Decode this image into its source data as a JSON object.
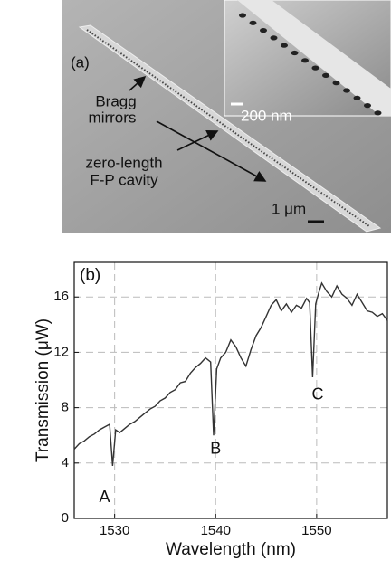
{
  "panel_a": {
    "panel_label": "(a)",
    "inset_scale": "200 nm",
    "scale": "1 μm",
    "label_mirrors": [
      "Bragg",
      "mirrors"
    ],
    "label_cavity": [
      "zero-length",
      "F-P cavity"
    ]
  },
  "chart_data": {
    "type": "line",
    "panel_label": "(b)",
    "x_label": "Wavelength (nm)",
    "y_label": "Transmission (μW)",
    "color": "#333333",
    "x": [
      1526,
      1526.5,
      1527,
      1527.5,
      1528,
      1528.5,
      1529,
      1529.5,
      1529.8,
      1530.1,
      1530.5,
      1531,
      1531.5,
      1532,
      1532.5,
      1533,
      1533.5,
      1534,
      1534.5,
      1535,
      1535.5,
      1536,
      1536.5,
      1537,
      1537.5,
      1538,
      1538.5,
      1539,
      1539.5,
      1539.8,
      1540.1,
      1540.5,
      1541,
      1541.5,
      1542,
      1542.5,
      1543,
      1543.5,
      1544,
      1544.5,
      1545,
      1545.5,
      1546,
      1546.5,
      1547,
      1547.5,
      1548,
      1548.5,
      1549,
      1549.3,
      1549.6,
      1549.9,
      1550.2,
      1550.5,
      1551,
      1551.5,
      1552,
      1552.5,
      1553,
      1553.5,
      1554,
      1554.5,
      1555,
      1555.5,
      1556,
      1556.5,
      1557
    ],
    "values": [
      5.0,
      5.4,
      5.6,
      5.9,
      6.1,
      6.4,
      6.6,
      6.8,
      3.8,
      6.4,
      6.2,
      6.5,
      6.8,
      7.0,
      7.3,
      7.6,
      7.9,
      8.1,
      8.5,
      8.7,
      9.1,
      9.3,
      9.8,
      9.9,
      10.5,
      10.9,
      11.2,
      11.6,
      11.3,
      6.0,
      10.8,
      11.6,
      12.0,
      12.9,
      12.4,
      11.6,
      11.0,
      12.2,
      13.2,
      13.8,
      14.6,
      15.4,
      15.8,
      15.0,
      15.5,
      14.9,
      15.4,
      15.2,
      15.9,
      15.6,
      10.2,
      15.5,
      16.3,
      17.0,
      16.4,
      16.0,
      16.8,
      16.2,
      15.9,
      15.4,
      16.2,
      15.6,
      15.0,
      14.9,
      14.6,
      14.8,
      14.3
    ],
    "xlim": [
      1526,
      1557
    ],
    "ylim": [
      0,
      18.5
    ],
    "xticks": [
      1530,
      1540,
      1550
    ],
    "yticks": [
      0,
      4,
      8,
      12,
      16
    ],
    "grid": true,
    "annotations": [
      {
        "text": "A",
        "x": 1529,
        "y": 1.5
      },
      {
        "text": "B",
        "x": 1540,
        "y": 5
      },
      {
        "text": "C",
        "x": 1550.1,
        "y": 8.9
      }
    ]
  }
}
